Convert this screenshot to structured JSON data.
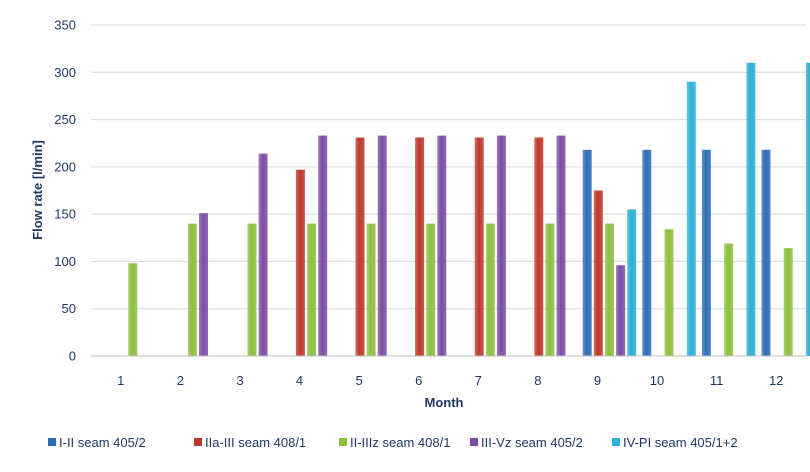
{
  "chart_data": {
    "type": "bar",
    "title": "",
    "xlabel": "Month",
    "ylabel": "Flow rate [l/min]",
    "ylim": [
      0,
      350
    ],
    "yticks": [
      0,
      50,
      100,
      150,
      200,
      250,
      300,
      350
    ],
    "grid": true,
    "legend_position": "bottom",
    "categories": [
      "1",
      "2",
      "3",
      "4",
      "5",
      "6",
      "7",
      "8",
      "9",
      "10",
      "11",
      "12"
    ],
    "series": [
      {
        "name": "I-II seam 405/2",
        "color": "#2e6db4",
        "values": [
          null,
          null,
          null,
          null,
          null,
          null,
          null,
          null,
          218,
          218,
          218,
          218
        ]
      },
      {
        "name": "IIa-III seam 408/1",
        "color": "#c0392b",
        "values": [
          null,
          null,
          null,
          197,
          231,
          231,
          231,
          231,
          175,
          null,
          null,
          null
        ]
      },
      {
        "name": "II-IIIz seam 408/1",
        "color": "#8dbf3f",
        "values": [
          98,
          140,
          140,
          140,
          140,
          140,
          140,
          140,
          140,
          134,
          119,
          114
        ]
      },
      {
        "name": "III-Vz seam 405/2",
        "color": "#7b4ea3",
        "values": [
          null,
          151,
          214,
          233,
          233,
          233,
          233,
          233,
          96,
          null,
          null,
          null
        ]
      },
      {
        "name": "IV-PI seam 405/1+2",
        "color": "#2bb0d6",
        "values": [
          null,
          null,
          null,
          null,
          null,
          null,
          null,
          null,
          155,
          290,
          310,
          310
        ]
      }
    ]
  }
}
